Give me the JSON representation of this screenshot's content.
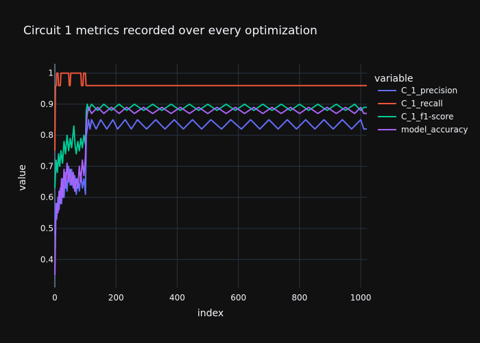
{
  "colors": {
    "background": "#111111",
    "grid": "#283442",
    "zero_line": "#506784",
    "text": "#f2f5fa",
    "tick_text": "#f2f5fa"
  },
  "chart_data": {
    "type": "line",
    "title": "Circuit 1 metrics recorded over every optimization",
    "xlabel": "index",
    "ylabel": "value",
    "xlim": [
      0,
      1020
    ],
    "ylim": [
      0.31,
      1.03
    ],
    "x_ticks": [
      0,
      200,
      400,
      600,
      800,
      1000
    ],
    "y_ticks": [
      0.4,
      0.5,
      0.6,
      0.7,
      0.8,
      0.9,
      1
    ],
    "x_tick_labels": [
      "0",
      "200",
      "400",
      "600",
      "800",
      "1000"
    ],
    "y_tick_labels": [
      "0.4",
      "0.5",
      "0.6",
      "0.7",
      "0.8",
      "0.9",
      "1"
    ],
    "grid": true,
    "legend_title": "variable",
    "legend_position": "top-right",
    "series": [
      {
        "name": "C_1_precision",
        "color": "#636efa",
        "points": [
          [
            0,
            0.48
          ],
          [
            3,
            0.58
          ],
          [
            6,
            0.53
          ],
          [
            10,
            0.6
          ],
          [
            14,
            0.56
          ],
          [
            18,
            0.63
          ],
          [
            22,
            0.58
          ],
          [
            26,
            0.66
          ],
          [
            30,
            0.6
          ],
          [
            35,
            0.68
          ],
          [
            40,
            0.62
          ],
          [
            45,
            0.7
          ],
          [
            50,
            0.64
          ],
          [
            55,
            0.69
          ],
          [
            60,
            0.63
          ],
          [
            65,
            0.67
          ],
          [
            70,
            0.61
          ],
          [
            75,
            0.66
          ],
          [
            80,
            0.62
          ],
          [
            85,
            0.68
          ],
          [
            90,
            0.63
          ],
          [
            95,
            0.66
          ],
          [
            100,
            0.61
          ],
          [
            103,
            0.8
          ],
          [
            106,
            0.82
          ],
          [
            110,
            0.85
          ],
          [
            115,
            0.82
          ],
          [
            120,
            0.85
          ],
          [
            135,
            0.82
          ],
          [
            150,
            0.85
          ],
          [
            170,
            0.82
          ],
          [
            190,
            0.85
          ],
          [
            205,
            0.82
          ],
          [
            230,
            0.85
          ],
          [
            250,
            0.82
          ],
          [
            270,
            0.85
          ],
          [
            300,
            0.82
          ],
          [
            330,
            0.85
          ],
          [
            360,
            0.82
          ],
          [
            390,
            0.85
          ],
          [
            420,
            0.82
          ],
          [
            450,
            0.85
          ],
          [
            480,
            0.82
          ],
          [
            510,
            0.85
          ],
          [
            545,
            0.82
          ],
          [
            575,
            0.85
          ],
          [
            610,
            0.82
          ],
          [
            640,
            0.85
          ],
          [
            670,
            0.82
          ],
          [
            700,
            0.85
          ],
          [
            730,
            0.82
          ],
          [
            760,
            0.85
          ],
          [
            790,
            0.82
          ],
          [
            820,
            0.85
          ],
          [
            850,
            0.82
          ],
          [
            880,
            0.85
          ],
          [
            910,
            0.82
          ],
          [
            940,
            0.85
          ],
          [
            970,
            0.82
          ],
          [
            1000,
            0.85
          ],
          [
            1010,
            0.82
          ],
          [
            1020,
            0.82
          ]
        ]
      },
      {
        "name": "C_1_recall",
        "color": "#ef553b",
        "points": [
          [
            0,
            0.75
          ],
          [
            2,
            0.96
          ],
          [
            5,
            0.96
          ],
          [
            6,
            1.0
          ],
          [
            10,
            1.0
          ],
          [
            12,
            0.96
          ],
          [
            18,
            0.96
          ],
          [
            20,
            1.0
          ],
          [
            45,
            1.0
          ],
          [
            47,
            0.96
          ],
          [
            50,
            0.96
          ],
          [
            52,
            1.0
          ],
          [
            85,
            1.0
          ],
          [
            87,
            0.96
          ],
          [
            92,
            0.96
          ],
          [
            94,
            1.0
          ],
          [
            100,
            1.0
          ],
          [
            102,
            0.96
          ],
          [
            1020,
            0.96
          ]
        ]
      },
      {
        "name": "C_1_f1-score",
        "color": "#00cc96",
        "points": [
          [
            0,
            0.63
          ],
          [
            4,
            0.72
          ],
          [
            8,
            0.68
          ],
          [
            12,
            0.74
          ],
          [
            16,
            0.7
          ],
          [
            20,
            0.75
          ],
          [
            25,
            0.71
          ],
          [
            30,
            0.78
          ],
          [
            35,
            0.74
          ],
          [
            40,
            0.8
          ],
          [
            45,
            0.75
          ],
          [
            50,
            0.79
          ],
          [
            55,
            0.76
          ],
          [
            60,
            0.81
          ],
          [
            62,
            0.83
          ],
          [
            66,
            0.77
          ],
          [
            70,
            0.74
          ],
          [
            75,
            0.78
          ],
          [
            80,
            0.75
          ],
          [
            85,
            0.79
          ],
          [
            90,
            0.76
          ],
          [
            95,
            0.8
          ],
          [
            100,
            0.77
          ],
          [
            103,
            0.88
          ],
          [
            106,
            0.9
          ],
          [
            110,
            0.88
          ],
          [
            120,
            0.9
          ],
          [
            140,
            0.88
          ],
          [
            160,
            0.9
          ],
          [
            185,
            0.88
          ],
          [
            210,
            0.9
          ],
          [
            235,
            0.88
          ],
          [
            260,
            0.9
          ],
          [
            290,
            0.88
          ],
          [
            320,
            0.9
          ],
          [
            350,
            0.88
          ],
          [
            380,
            0.9
          ],
          [
            410,
            0.88
          ],
          [
            440,
            0.9
          ],
          [
            470,
            0.88
          ],
          [
            500,
            0.9
          ],
          [
            530,
            0.88
          ],
          [
            560,
            0.9
          ],
          [
            590,
            0.88
          ],
          [
            620,
            0.9
          ],
          [
            650,
            0.88
          ],
          [
            680,
            0.9
          ],
          [
            710,
            0.88
          ],
          [
            740,
            0.9
          ],
          [
            770,
            0.88
          ],
          [
            800,
            0.9
          ],
          [
            830,
            0.88
          ],
          [
            860,
            0.9
          ],
          [
            890,
            0.88
          ],
          [
            920,
            0.9
          ],
          [
            950,
            0.88
          ],
          [
            980,
            0.9
          ],
          [
            1000,
            0.88
          ],
          [
            1010,
            0.89
          ],
          [
            1020,
            0.89
          ]
        ]
      },
      {
        "name": "model_accuracy",
        "color": "#ab63fa",
        "points": [
          [
            0,
            0.35
          ],
          [
            3,
            0.52
          ],
          [
            6,
            0.58
          ],
          [
            10,
            0.55
          ],
          [
            14,
            0.62
          ],
          [
            18,
            0.58
          ],
          [
            22,
            0.66
          ],
          [
            26,
            0.6
          ],
          [
            30,
            0.69
          ],
          [
            35,
            0.63
          ],
          [
            40,
            0.71
          ],
          [
            45,
            0.65
          ],
          [
            50,
            0.69
          ],
          [
            55,
            0.64
          ],
          [
            60,
            0.68
          ],
          [
            65,
            0.62
          ],
          [
            70,
            0.66
          ],
          [
            75,
            0.63
          ],
          [
            80,
            0.7
          ],
          [
            85,
            0.65
          ],
          [
            90,
            0.72
          ],
          [
            95,
            0.67
          ],
          [
            100,
            0.73
          ],
          [
            103,
            0.84
          ],
          [
            106,
            0.87
          ],
          [
            110,
            0.89
          ],
          [
            120,
            0.87
          ],
          [
            140,
            0.89
          ],
          [
            160,
            0.87
          ],
          [
            185,
            0.89
          ],
          [
            210,
            0.87
          ],
          [
            235,
            0.89
          ],
          [
            260,
            0.87
          ],
          [
            290,
            0.89
          ],
          [
            320,
            0.87
          ],
          [
            350,
            0.89
          ],
          [
            380,
            0.87
          ],
          [
            410,
            0.89
          ],
          [
            440,
            0.87
          ],
          [
            470,
            0.89
          ],
          [
            500,
            0.87
          ],
          [
            530,
            0.89
          ],
          [
            560,
            0.87
          ],
          [
            590,
            0.89
          ],
          [
            620,
            0.87
          ],
          [
            650,
            0.89
          ],
          [
            680,
            0.87
          ],
          [
            710,
            0.89
          ],
          [
            740,
            0.87
          ],
          [
            770,
            0.89
          ],
          [
            800,
            0.87
          ],
          [
            830,
            0.89
          ],
          [
            860,
            0.87
          ],
          [
            890,
            0.89
          ],
          [
            920,
            0.87
          ],
          [
            950,
            0.89
          ],
          [
            980,
            0.87
          ],
          [
            1000,
            0.89
          ],
          [
            1010,
            0.87
          ],
          [
            1020,
            0.87
          ]
        ]
      }
    ]
  }
}
